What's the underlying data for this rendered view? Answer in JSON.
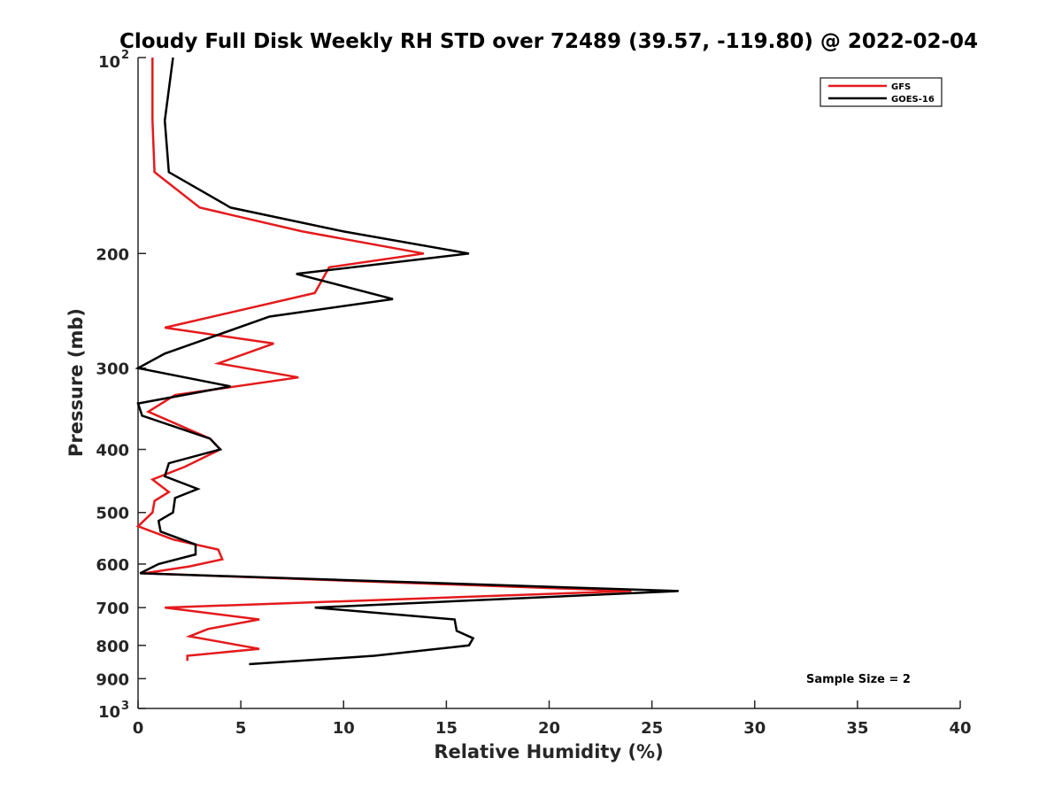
{
  "chart_data": {
    "type": "line",
    "title": "Cloudy Full Disk Weekly RH STD over 72489 (39.57, -119.80) @ 2022-02-04",
    "xlabel": "Relative Humidity (%)",
    "ylabel": "Pressure (mb)",
    "xlim": [
      0,
      40
    ],
    "ylim": [
      100,
      1000
    ],
    "y_scale": "log",
    "y_reversed": true,
    "x_ticks": [
      0,
      5,
      10,
      15,
      20,
      25,
      30,
      35,
      40
    ],
    "x_tick_labels": [
      "0",
      "5",
      "10",
      "15",
      "20",
      "25",
      "30",
      "35",
      "40"
    ],
    "y_ticks": [
      200,
      300,
      400,
      500,
      600,
      700,
      800,
      900
    ],
    "y_tick_labels": [
      "200",
      "300",
      "400",
      "500",
      "600",
      "700",
      "800",
      "900"
    ],
    "y_top_label": {
      "base": "10",
      "exp": "2"
    },
    "y_bottom_label": {
      "base": "10",
      "exp": "3"
    },
    "grid": false,
    "legend_position": "top-right",
    "annotation": "Sample Size = 2",
    "series": [
      {
        "name": "GFS",
        "color": "#e41a1c",
        "points": [
          [
            0.7,
            100
          ],
          [
            0.7,
            125
          ],
          [
            0.8,
            150
          ],
          [
            3.0,
            170
          ],
          [
            8.0,
            185
          ],
          [
            13.9,
            200
          ],
          [
            9.3,
            210
          ],
          [
            8.6,
            230
          ],
          [
            1.3,
            260
          ],
          [
            6.6,
            275
          ],
          [
            3.9,
            295
          ],
          [
            7.8,
            310
          ],
          [
            1.8,
            330
          ],
          [
            0.5,
            350
          ],
          [
            3.5,
            385
          ],
          [
            4.0,
            400
          ],
          [
            2.3,
            425
          ],
          [
            0.7,
            445
          ],
          [
            1.5,
            465
          ],
          [
            0.8,
            480
          ],
          [
            0.7,
            500
          ],
          [
            0.0,
            525
          ],
          [
            1.7,
            550
          ],
          [
            3.9,
            570
          ],
          [
            4.1,
            590
          ],
          [
            2.5,
            605
          ],
          [
            0.3,
            620
          ],
          [
            24.0,
            660
          ],
          [
            1.3,
            700
          ],
          [
            5.9,
            730
          ],
          [
            3.4,
            755
          ],
          [
            2.5,
            775
          ],
          [
            5.9,
            810
          ],
          [
            2.4,
            830
          ],
          [
            2.4,
            845
          ]
        ]
      },
      {
        "name": "GOES-16",
        "color": "#000000",
        "points": [
          [
            1.7,
            100
          ],
          [
            1.3,
            125
          ],
          [
            1.5,
            150
          ],
          [
            4.5,
            170
          ],
          [
            10.0,
            185
          ],
          [
            16.1,
            200
          ],
          [
            7.7,
            215
          ],
          [
            12.4,
            235
          ],
          [
            6.4,
            250
          ],
          [
            1.3,
            285
          ],
          [
            0.0,
            300
          ],
          [
            4.5,
            320
          ],
          [
            0.0,
            340
          ],
          [
            0.2,
            355
          ],
          [
            3.5,
            385
          ],
          [
            4.0,
            400
          ],
          [
            1.5,
            420
          ],
          [
            1.3,
            440
          ],
          [
            2.9,
            460
          ],
          [
            1.8,
            475
          ],
          [
            1.7,
            500
          ],
          [
            1.0,
            515
          ],
          [
            1.1,
            535
          ],
          [
            2.8,
            560
          ],
          [
            2.8,
            580
          ],
          [
            1.0,
            600
          ],
          [
            0.1,
            620
          ],
          [
            26.3,
            660
          ],
          [
            8.6,
            700
          ],
          [
            15.4,
            730
          ],
          [
            15.5,
            760
          ],
          [
            16.3,
            780
          ],
          [
            16.1,
            800
          ],
          [
            11.5,
            830
          ],
          [
            5.4,
            855
          ]
        ]
      }
    ]
  }
}
